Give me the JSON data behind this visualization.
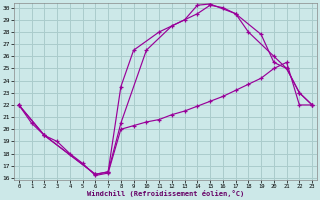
{
  "xlabel": "Windchill (Refroidissement éolien,°C)",
  "background_color": "#cce8e8",
  "grid_color": "#aacccc",
  "line_color": "#990099",
  "xlim_min": -0.4,
  "xlim_max": 23.4,
  "ylim_min": 15.8,
  "ylim_max": 30.4,
  "xticks": [
    0,
    1,
    2,
    3,
    4,
    5,
    6,
    7,
    8,
    9,
    10,
    11,
    12,
    13,
    14,
    15,
    16,
    17,
    18,
    19,
    20,
    21,
    22,
    23
  ],
  "yticks": [
    16,
    17,
    18,
    19,
    20,
    21,
    22,
    23,
    24,
    25,
    26,
    27,
    28,
    29,
    30
  ],
  "line1_x": [
    0,
    1,
    2,
    3,
    4,
    5,
    6,
    7,
    8,
    9,
    10,
    11,
    12,
    13,
    14,
    15,
    16,
    17,
    18,
    19,
    20,
    21,
    22,
    23
  ],
  "line1_y": [
    22,
    20.5,
    19.5,
    19.0,
    18.0,
    17.2,
    16.2,
    16.4,
    20.0,
    20.3,
    20.6,
    20.8,
    21.2,
    21.5,
    21.9,
    22.3,
    22.7,
    23.2,
    23.7,
    24.2,
    25.0,
    25.5,
    22.0,
    22.0
  ],
  "line2_x": [
    0,
    2,
    6,
    7,
    8,
    10,
    12,
    14,
    15,
    16,
    17,
    18,
    20,
    21,
    22,
    23
  ],
  "line2_y": [
    22,
    19.5,
    16.3,
    16.5,
    20.5,
    26.5,
    28.5,
    29.5,
    30.2,
    30.0,
    29.5,
    28.0,
    26.0,
    25.0,
    23.0,
    22.0
  ],
  "line3_x": [
    0,
    2,
    6,
    7,
    8,
    9,
    11,
    13,
    14,
    15,
    17,
    19,
    20,
    21,
    22,
    23
  ],
  "line3_y": [
    22,
    19.5,
    16.3,
    16.5,
    23.5,
    26.5,
    28.0,
    29.0,
    30.2,
    30.3,
    29.5,
    27.8,
    25.5,
    25.0,
    23.0,
    22.0
  ]
}
